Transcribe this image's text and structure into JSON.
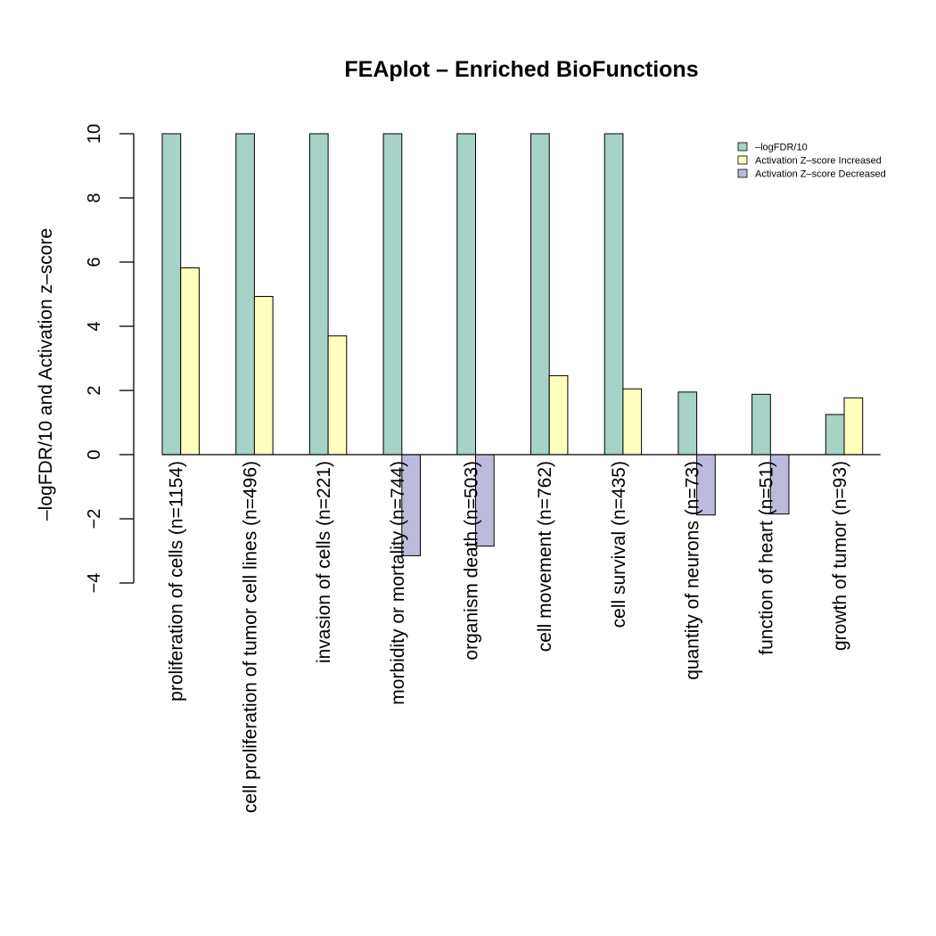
{
  "chart_data": {
    "type": "bar",
    "title": "FEAplot  – Enriched BioFunctions",
    "ylabel": "–logFDR/10 and Activation z–score",
    "xlabel": "",
    "ylim": [
      -4,
      10
    ],
    "yticks": [
      -4,
      -2,
      0,
      2,
      4,
      6,
      8,
      10
    ],
    "ytick_labels": [
      "−4",
      "−2",
      "0",
      "2",
      "4",
      "6",
      "8",
      "10"
    ],
    "categories": [
      "proliferation of cells (n=1154)",
      "cell proliferation of tumor cell lines (n=496)",
      "invasion of cells (n=221)",
      "morbidity or mortality  (n=744)",
      "organism death (n=503)",
      "cell movement  (n=762)",
      "cell survival  (n=435)",
      "quantity of neurons (n=73)",
      "function of heart (n=51)",
      "growth of tumor (n=93)"
    ],
    "series": [
      {
        "name": "–logFDR/10",
        "color": "#a6d2c8",
        "values": [
          10,
          10,
          10,
          10,
          10,
          10,
          10,
          1.95,
          1.88,
          1.25
        ]
      },
      {
        "name": "Activation Z–score Increased",
        "color": "#ffffbe",
        "values": [
          5.82,
          4.93,
          3.7,
          0,
          0,
          2.46,
          2.05,
          0,
          0,
          1.77
        ]
      },
      {
        "name": "Activation Z–score Decreased",
        "color": "#bdbbdb",
        "values": [
          0,
          0,
          0,
          -3.15,
          0,
          0,
          0,
          0,
          0,
          0
        ]
      },
      {
        "name": "",
        "color": "#bdbbdb",
        "values": [
          0,
          0,
          0,
          0,
          -2.85,
          0,
          0,
          -1.88,
          -1.85,
          0
        ]
      }
    ],
    "legend_position": "top-right",
    "grid": false
  }
}
